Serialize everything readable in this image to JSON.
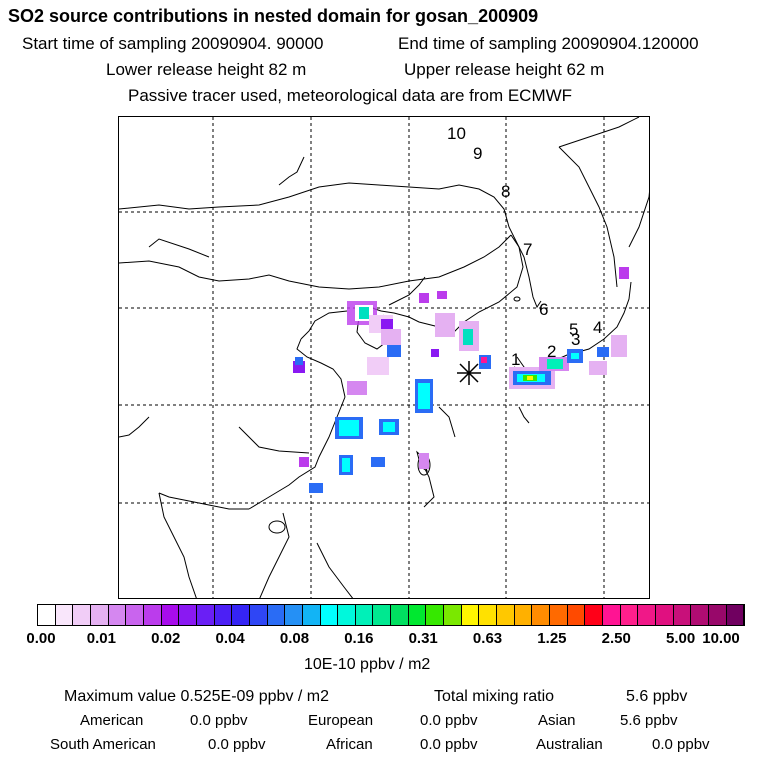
{
  "header": {
    "title": "SO2 source contributions in nested domain for gosan_200909",
    "start_label": "Start time of sampling 20090904. 90000",
    "end_label": "End time of sampling 20090904.120000",
    "lower_label": "Lower release height   82 m",
    "upper_label": "Upper release height   62 m",
    "tracer_note": "Passive tracer used, meteorological data are from ECMWF"
  },
  "map": {
    "trajectory_labels": [
      "1",
      "2",
      "3",
      "4",
      "5",
      "6",
      "7",
      "8",
      "9",
      "10"
    ],
    "receptor_marker": "gosan-station"
  },
  "colorbar": {
    "tick_labels": [
      "0.00",
      "0.01",
      "0.02",
      "0.04",
      "0.08",
      "0.16",
      "0.31",
      "0.63",
      "1.25",
      "2.50",
      "5.00",
      "10.00"
    ],
    "units": "10E-10 ppbv / m2",
    "colors": [
      "#ffffff",
      "#f9e6fb",
      "#f1cdf7",
      "#e5b1f2",
      "#d587f0",
      "#c964ee",
      "#bb3cec",
      "#a80cec",
      "#8a19f2",
      "#6a1ff5",
      "#4c20f5",
      "#3524f5",
      "#2f46f5",
      "#2a6cf5",
      "#2590f5",
      "#12b4f5",
      "#00ffff",
      "#00f8dc",
      "#00f0b8",
      "#00e890",
      "#00e060",
      "#00e830",
      "#36e800",
      "#7ae800",
      "#fff500",
      "#ffe100",
      "#ffc800",
      "#ffb000",
      "#ff8c00",
      "#ff6a00",
      "#ff4a00",
      "#ff0018",
      "#ff1493",
      "#ff1f8c",
      "#f01888",
      "#e01080",
      "#c8107a",
      "#b00c72",
      "#98086a",
      "#700060"
    ]
  },
  "stats": {
    "max_label": "Maximum value  0.525E-09 ppbv / m2",
    "total_label": "Total mixing ratio",
    "total_value": "5.6 ppbv"
  },
  "regions": [
    {
      "name": "American",
      "value": "0.0 ppbv"
    },
    {
      "name": "European",
      "value": "0.0 ppbv"
    },
    {
      "name": "Asian",
      "value": "5.6 ppbv"
    },
    {
      "name": "South American",
      "value": "0.0 ppbv"
    },
    {
      "name": "African",
      "value": "0.0 ppbv"
    },
    {
      "name": "Australian",
      "value": "0.0 ppbv"
    }
  ]
}
